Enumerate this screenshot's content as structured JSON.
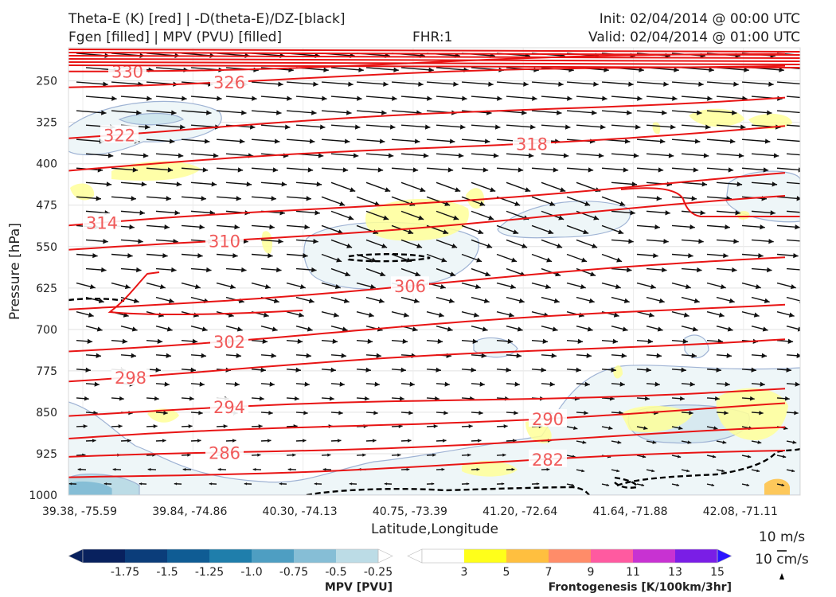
{
  "title": {
    "line1_left": "Theta-E (K) [red] | -D(theta-E)/DZ-[black]",
    "line2_left": "Fgen [filled] | MPV (PVU) [filled]",
    "center": "FHR:1",
    "line1_right": "Init: 02/04/2014 @ 00:00 UTC",
    "line2_right": "Valid: 02/04/2014 @ 01:00 UTC"
  },
  "chart_data": {
    "type": "cross-section",
    "xlabel": "Latitude,Longitude",
    "ylabel": "Pressure [hPa]",
    "x_ticks": [
      "39.38, -75.59",
      "39.84, -74.86",
      "40.30, -74.13",
      "40.75, -73.39",
      "41.20, -72.64",
      "41.64, -71.88",
      "42.08, -71.11"
    ],
    "y_ticks": [
      250,
      325,
      400,
      475,
      550,
      625,
      700,
      775,
      850,
      925,
      1000
    ],
    "ylim": [
      190,
      1000
    ],
    "theta_e_contours": [
      {
        "label": "330",
        "level": 330,
        "p_left": 233,
        "p_right": 200
      },
      {
        "label": "326",
        "level": 326,
        "p_left": 258,
        "p_right": 218
      },
      {
        "label": "322",
        "level": 322,
        "p_left": 350,
        "p_right": 275
      },
      {
        "label": "318",
        "level": 318,
        "p_left": 412,
        "p_right": 330
      },
      {
        "label": "314",
        "level": 314,
        "p_left": 515,
        "p_right": 418
      },
      {
        "label": "310",
        "level": 310,
        "p_left": 560,
        "p_right": 460
      },
      {
        "label": "306",
        "level": 306,
        "p_left": 665,
        "p_right": 568
      },
      {
        "label": "302",
        "level": 302,
        "p_left": 737,
        "p_right": 650
      },
      {
        "label": "298",
        "level": 298,
        "p_left": 790,
        "p_right": 712
      },
      {
        "label": "294",
        "level": 294,
        "p_left": 855,
        "p_right": 805
      },
      {
        "label": "290",
        "level": 290,
        "p_left": 900,
        "p_right": 835
      },
      {
        "label": "286",
        "level": 286,
        "p_left": 935,
        "p_right": 880
      },
      {
        "label": "282",
        "level": 282,
        "p_left": 970,
        "p_right": 920
      }
    ],
    "colorbars": [
      {
        "title": "MPV [PVU]",
        "colors": [
          "#08215e",
          "#0b3d7a",
          "#0f5c94",
          "#1f7eab",
          "#4e9ec2",
          "#86bed6",
          "#bcdce6",
          "#ffffff"
        ],
        "ticks": [
          "-1.75",
          "-1.5",
          "-1.25",
          "-1.0",
          "-0.75",
          "-0.5",
          "-0.25"
        ]
      },
      {
        "title": "Frontogenesis [K/100km/3hr]",
        "colors": [
          "#ffffff",
          "#ffff1a",
          "#ffbf3f",
          "#ff8c69",
          "#ff5aa0",
          "#c832d2",
          "#7a1ee6",
          "#2a14ff"
        ],
        "ticks": [
          "3",
          "5",
          "7",
          "9",
          "11",
          "13",
          "15"
        ]
      }
    ],
    "wind_legend": {
      "horizontal": "10 m/s",
      "vertical": "10 cm/s"
    }
  }
}
